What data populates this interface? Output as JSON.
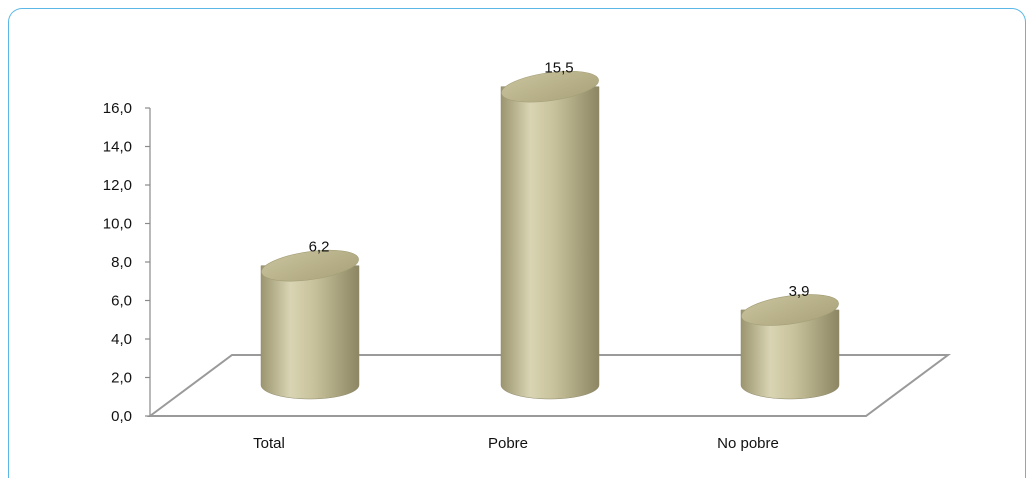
{
  "chart_data": {
    "type": "bar",
    "categories": [
      "Total",
      "Pobre",
      "No pobre"
    ],
    "values": [
      6.2,
      15.5,
      3.9
    ],
    "value_labels": [
      "6,2",
      "15,5",
      "3,9"
    ],
    "ylim": [
      0,
      16
    ],
    "y_ticks": [
      "0,0",
      "2,0",
      "4,0",
      "6,0",
      "8,0",
      "10,0",
      "12,0",
      "14,0",
      "16,0"
    ],
    "title": "",
    "xlabel": "",
    "ylabel": "",
    "grid": false,
    "bar_color": "#c9c39c",
    "bar_dark_color": "#9a9470",
    "bar_top_color": "#bdb88c"
  }
}
